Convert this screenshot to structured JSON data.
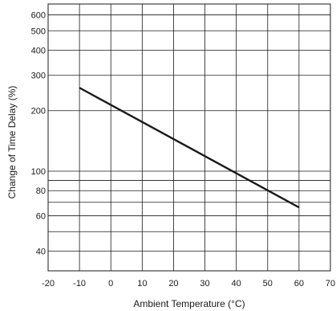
{
  "chart_data": {
    "type": "line",
    "title": "",
    "xlabel": "Ambient Temperature (°C)",
    "ylabel": "Change of Time Delay (%)",
    "xlim": [
      -20,
      70
    ],
    "ylim": [
      30,
      700
    ],
    "yscale": "log",
    "grid": true,
    "legend": "none",
    "x_ticks": [
      -20,
      -10,
      0,
      10,
      20,
      30,
      40,
      50,
      60,
      70
    ],
    "y_ticks": [
      40,
      60,
      80,
      100,
      200,
      300,
      400,
      500,
      600
    ],
    "y_gridlines": [
      40,
      50,
      60,
      70,
      80,
      90,
      100,
      200,
      300,
      400,
      500,
      600
    ],
    "series": [
      {
        "x": [
          -10,
          60
        ],
        "y": [
          260,
          66
        ],
        "color": "#1a1a1a"
      }
    ]
  }
}
